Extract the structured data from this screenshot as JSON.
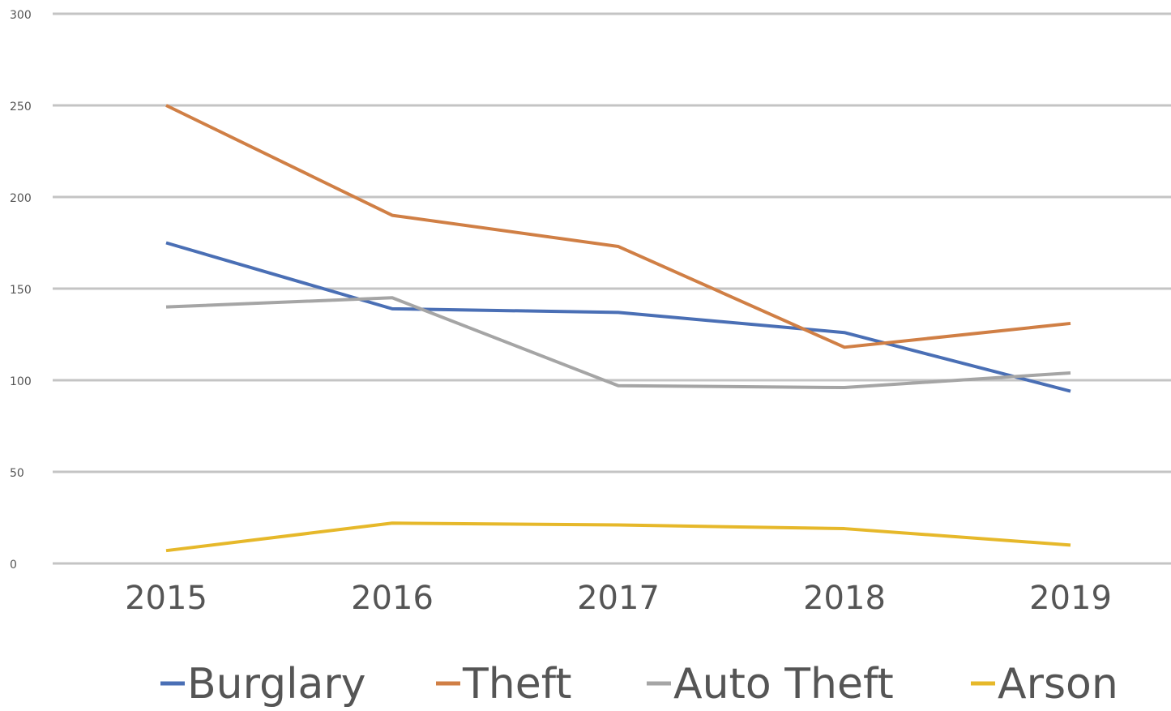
{
  "chart_data": {
    "type": "line",
    "categories": [
      "2015",
      "2016",
      "2017",
      "2018",
      "2019"
    ],
    "series": [
      {
        "name": "Burglary",
        "color": "#4a6fb5",
        "values": [
          175,
          139,
          137,
          126,
          94
        ]
      },
      {
        "name": "Theft",
        "color": "#d07f45",
        "values": [
          250,
          190,
          173,
          118,
          131
        ]
      },
      {
        "name": "Auto Theft",
        "color": "#a5a5a5",
        "values": [
          140,
          145,
          97,
          96,
          104
        ]
      },
      {
        "name": "Arson",
        "color": "#e6b82a",
        "values": [
          7,
          22,
          21,
          19,
          10
        ]
      }
    ],
    "ylim": [
      0,
      300
    ],
    "yticks": [
      0,
      50,
      100,
      150,
      200,
      250,
      300
    ],
    "grid": true,
    "legend": "bottom"
  }
}
